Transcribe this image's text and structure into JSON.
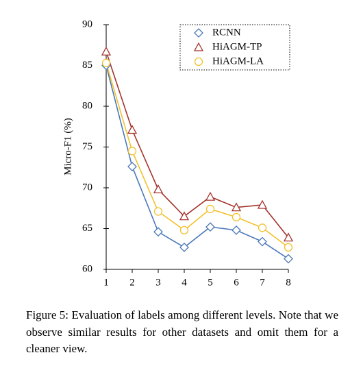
{
  "chart_data": {
    "type": "line",
    "x": [
      1,
      2,
      3,
      4,
      5,
      6,
      7,
      8
    ],
    "xlim": [
      1,
      8
    ],
    "xticks": [
      1,
      2,
      3,
      4,
      5,
      6,
      7,
      8
    ],
    "ylim": [
      60,
      90
    ],
    "yticks": [
      60,
      65,
      70,
      75,
      80,
      85,
      90
    ],
    "ylabel": "Micro-F1 (%)",
    "legend": "upper right",
    "series": [
      {
        "name": "RCNN",
        "color": "#4a78b8",
        "marker": "diamond",
        "values": [
          85,
          72.6,
          64.6,
          62.7,
          65.2,
          64.8,
          63.4,
          61.3
        ]
      },
      {
        "name": "HiAGM-TP",
        "color": "#a3332c",
        "marker": "triangle",
        "values": [
          86.7,
          77.1,
          69.8,
          66.5,
          68.9,
          67.6,
          67.9,
          63.9
        ]
      },
      {
        "name": "HiAGM-LA",
        "color": "#f2c12e",
        "marker": "circle",
        "values": [
          85.3,
          74.5,
          67.1,
          64.8,
          67.4,
          66.4,
          65.1,
          62.7
        ]
      }
    ]
  },
  "caption": "Figure 5: Evaluation of labels among different levels. Note that we observe similar results for other datasets and omit them for a cleaner view."
}
